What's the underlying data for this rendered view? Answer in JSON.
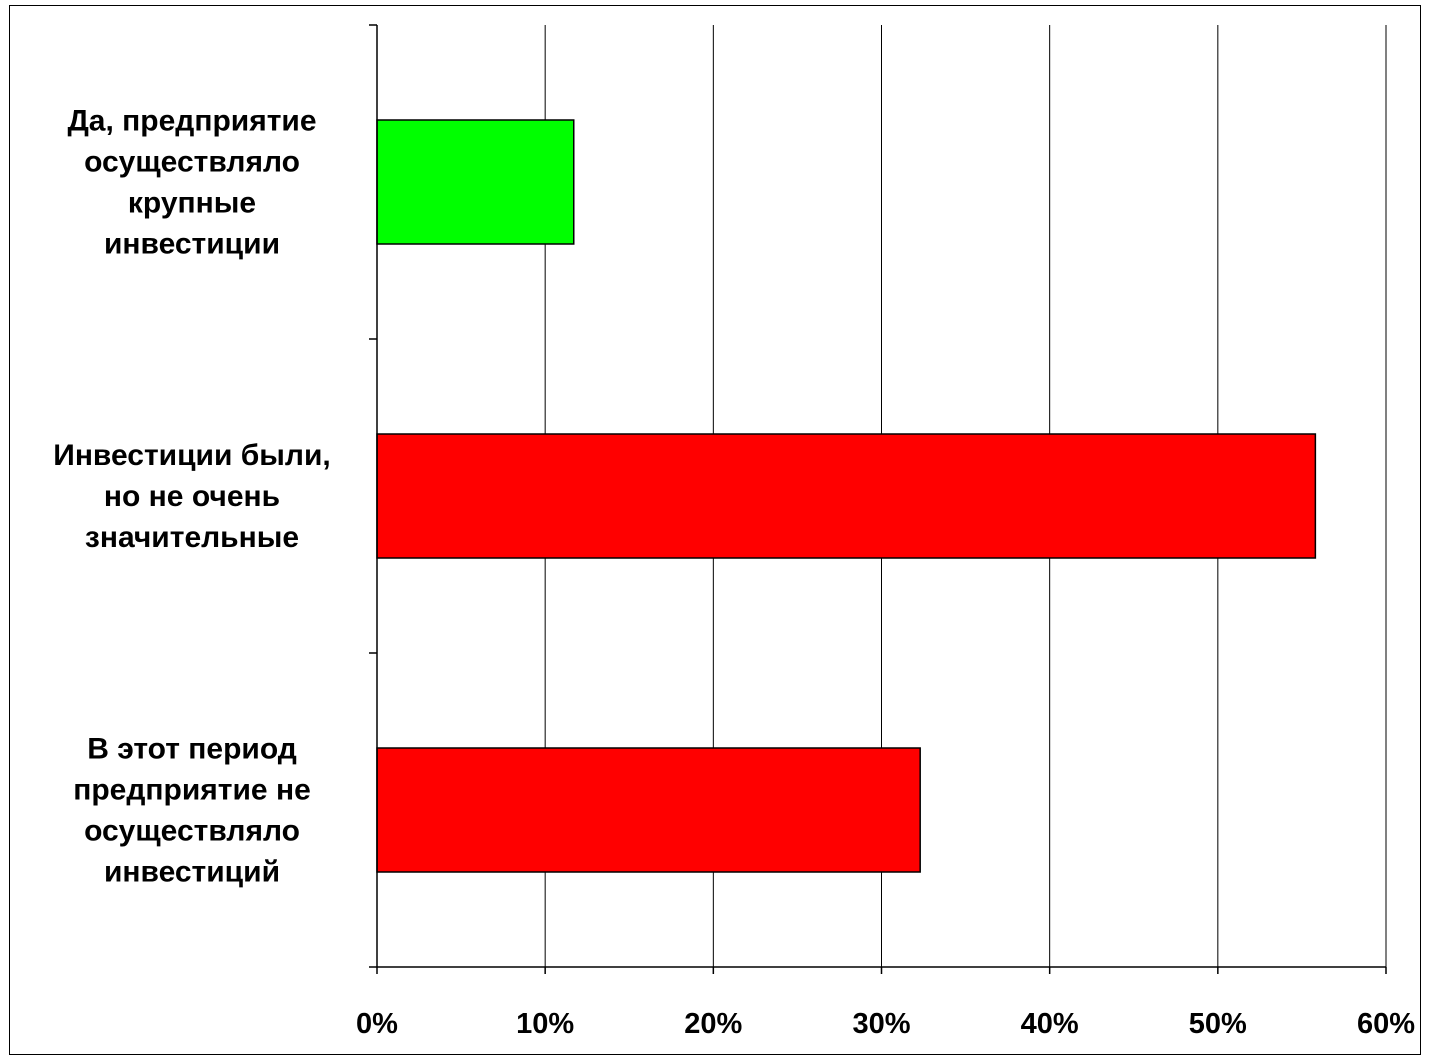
{
  "chart_data": {
    "type": "bar",
    "orientation": "horizontal",
    "categories": [
      [
        "Да, предприятие",
        "осуществляло",
        "крупные",
        "инвестиции"
      ],
      [
        "Инвестиции были,",
        "но не очень",
        "значительные"
      ],
      [
        "В этот период",
        "предприятие не",
        "осуществляло",
        "инвестиций"
      ]
    ],
    "values": [
      11.7,
      55.8,
      32.3
    ],
    "bar_colors": [
      "#00ff00",
      "#ff0000",
      "#ff0000"
    ],
    "x_ticks": [
      "0%",
      "10%",
      "20%",
      "30%",
      "40%",
      "50%",
      "60%"
    ],
    "xlim": [
      0,
      60
    ],
    "xlabel": "",
    "ylabel": "",
    "grid": "vertical",
    "legend": "none"
  }
}
